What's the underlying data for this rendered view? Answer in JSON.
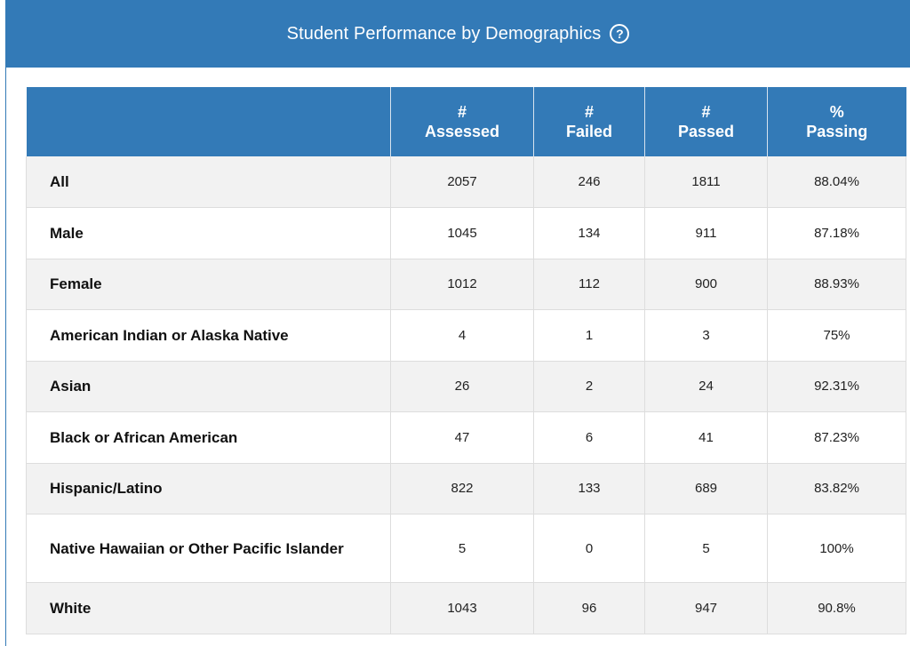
{
  "panel": {
    "title": "Student Performance by Demographics",
    "help_icon": "question-circle-icon",
    "header_color": "#337ab7"
  },
  "table": {
    "headers": {
      "group": "",
      "assessed_line1": "#",
      "assessed_line2": "Assessed",
      "failed_line1": "#",
      "failed_line2": "Failed",
      "passed_line1": "#",
      "passed_line2": "Passed",
      "pct_line1": "%",
      "pct_line2": "Passing"
    },
    "rows": [
      {
        "group": "All",
        "assessed": "2057",
        "failed": "246",
        "passed": "1811",
        "pct": "88.04%"
      },
      {
        "group": "Male",
        "assessed": "1045",
        "failed": "134",
        "passed": "911",
        "pct": "87.18%"
      },
      {
        "group": "Female",
        "assessed": "1012",
        "failed": "112",
        "passed": "900",
        "pct": "88.93%"
      },
      {
        "group": "American Indian or Alaska Native",
        "assessed": "4",
        "failed": "1",
        "passed": "3",
        "pct": "75%"
      },
      {
        "group": "Asian",
        "assessed": "26",
        "failed": "2",
        "passed": "24",
        "pct": "92.31%"
      },
      {
        "group": "Black or African American",
        "assessed": "47",
        "failed": "6",
        "passed": "41",
        "pct": "87.23%"
      },
      {
        "group": "Hispanic/Latino",
        "assessed": "822",
        "failed": "133",
        "passed": "689",
        "pct": "83.82%"
      },
      {
        "group": "Native Hawaiian or Other Pacific Islander",
        "assessed": "5",
        "failed": "0",
        "passed": "5",
        "pct": "100%"
      },
      {
        "group": "White",
        "assessed": "1043",
        "failed": "96",
        "passed": "947",
        "pct": "90.8%"
      }
    ]
  }
}
